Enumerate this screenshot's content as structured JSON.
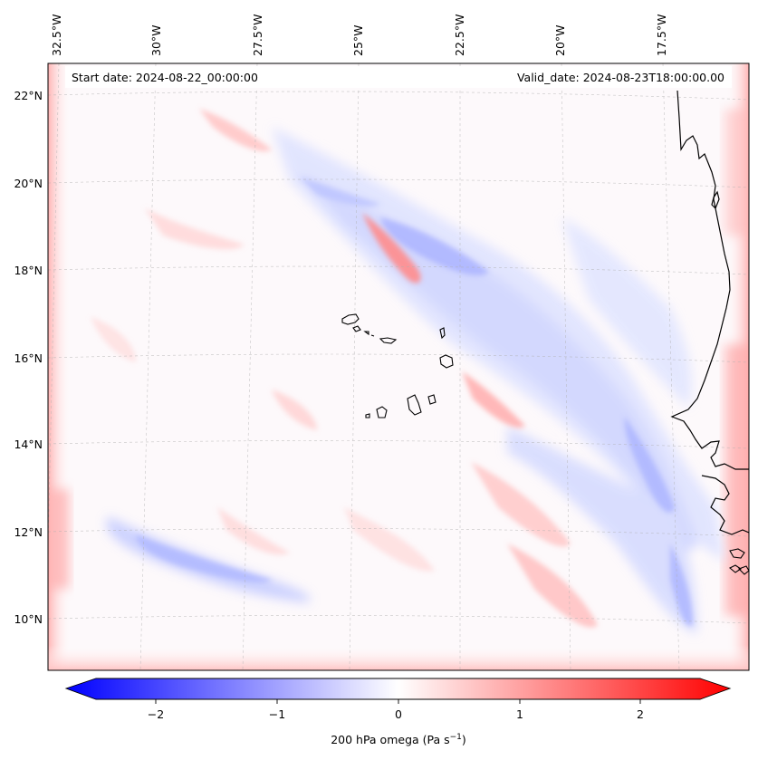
{
  "map": {
    "start_label": "Start date: 2024-08-22_00:00:00",
    "valid_label": "Valid_date: 2024-08-23T18:00:00.00",
    "field": "200 hPa omega",
    "lon_labels": [
      "32.5°W",
      "30°W",
      "27.5°W",
      "25°W",
      "22.5°W",
      "20°W",
      "17.5°W"
    ],
    "lat_labels": [
      "22°N",
      "20°N",
      "18°N",
      "16°N",
      "14°N",
      "12°N",
      "10°N"
    ],
    "colors": {
      "negative": "#0000ff",
      "zero": "#ffffff",
      "positive": "#ff0000",
      "coastline": "#000000",
      "gridline": "#b0b0b0"
    }
  },
  "colorbar": {
    "ticks": [
      "−2",
      "−1",
      "0",
      "1",
      "2"
    ],
    "tick_values": [
      -2,
      -1,
      0,
      1,
      2
    ],
    "range": [
      -2.5,
      2.5
    ],
    "extend": "both",
    "label_main": "200 hPa omega (Pa s",
    "label_exp": "−1",
    "label_close": ")"
  }
}
